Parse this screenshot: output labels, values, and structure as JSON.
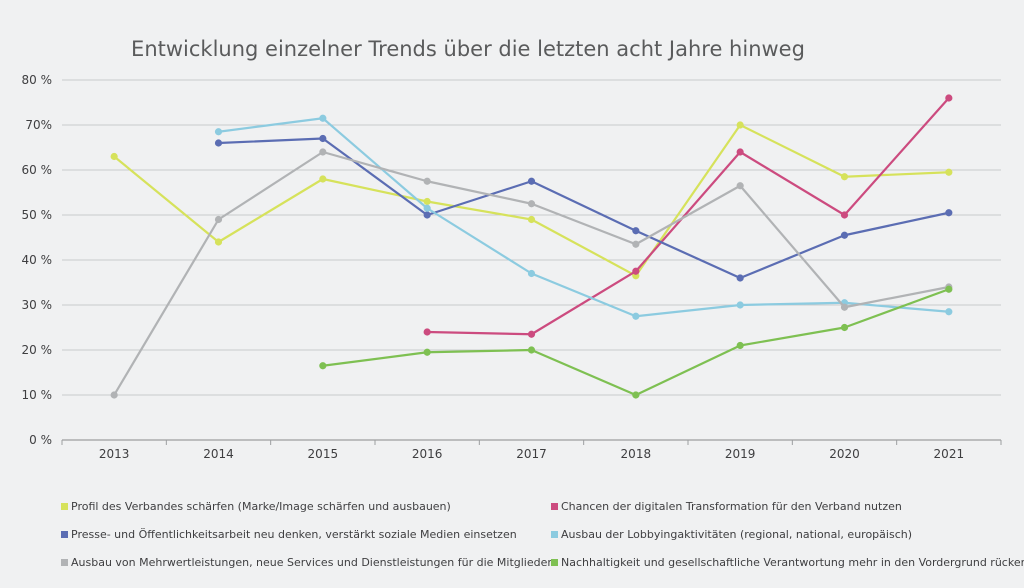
{
  "chart_data": {
    "type": "line",
    "title": "Entwicklung einzelner Trends über die letzten acht Jahre hinweg",
    "xlabel": "",
    "ylabel": "",
    "x": [
      "2013",
      "2014",
      "2015",
      "2016",
      "2017",
      "2018",
      "2019",
      "2020",
      "2021"
    ],
    "ylim": [
      0,
      80
    ],
    "yticks": [
      0,
      10,
      20,
      30,
      40,
      50,
      60,
      70,
      80
    ],
    "ytick_labels": [
      "0 %",
      "10 %",
      "20 %",
      "30 %",
      "40 %",
      "50 %",
      "60 %",
      "70%",
      "80 %"
    ],
    "grid": "horizontal",
    "legend_position": "bottom",
    "series": [
      {
        "name": "Profil des Verbandes schärfen (Marke/Image schärfen und ausbauen)",
        "color": "#d6e25b",
        "values": [
          63,
          44,
          58,
          53,
          49,
          36.5,
          70,
          58.5,
          59.5
        ]
      },
      {
        "name": "Chancen der digitalen Transformation für den Verband nutzen",
        "color": "#cc4b7f",
        "values": [
          null,
          null,
          null,
          24,
          23.5,
          37.5,
          64,
          50,
          76
        ]
      },
      {
        "name": "Presse- und Öffentlichkeitsarbeit neu denken, verstärkt soziale Medien einsetzen",
        "color": "#5b6db3",
        "values": [
          null,
          66,
          67,
          50,
          57.5,
          46.5,
          36,
          45.5,
          50.5
        ]
      },
      {
        "name": "Ausbau der Lobbyingaktivitäten (regional, national, europäisch)",
        "color": "#8ccbe0",
        "values": [
          null,
          68.5,
          71.5,
          51.5,
          37,
          27.5,
          30,
          30.5,
          28.5
        ]
      },
      {
        "name": "Ausbau von Mehrwertleistungen, neue Services und Dienstleistungen für die Mitglieder",
        "color": "#b1b3b5",
        "values": [
          10,
          49,
          64,
          57.5,
          52.5,
          43.5,
          56.5,
          29.5,
          34
        ]
      },
      {
        "name": "Nachhaltigkeit und gesellschaftliche Verantwortung mehr in den Vordergrund rücken",
        "color": "#7ec052",
        "values": [
          null,
          null,
          16.5,
          19.5,
          20,
          10,
          21,
          25,
          33.5
        ]
      }
    ]
  }
}
